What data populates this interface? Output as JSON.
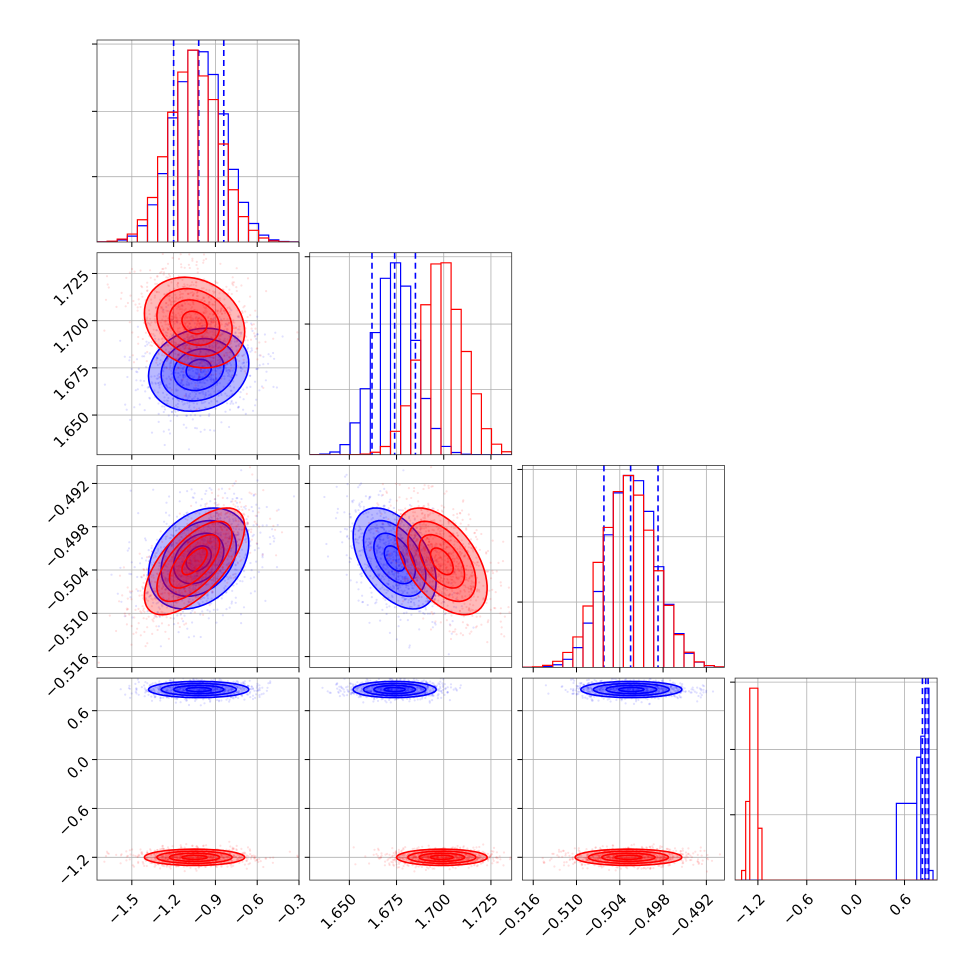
{
  "chart_data": {
    "type": "corner",
    "title": "",
    "grid": true,
    "parameters": [
      {
        "index": 0,
        "range": [
          -1.75,
          -0.3
        ],
        "ticks": [
          -1.5,
          -1.2,
          -0.9,
          -0.6,
          -0.3
        ],
        "tick_labels": [
          "−1.5",
          "−1.2",
          "−0.9",
          "−0.6",
          "−0.3"
        ]
      },
      {
        "index": 1,
        "range": [
          1.629,
          1.736
        ],
        "ticks": [
          1.65,
          1.675,
          1.7,
          1.725
        ],
        "tick_labels": [
          "1.650",
          "1.675",
          "1.700",
          "1.725"
        ]
      },
      {
        "index": 2,
        "range": [
          -0.5175,
          -0.4895
        ],
        "ticks": [
          -0.516,
          -0.51,
          -0.504,
          -0.498,
          -0.492
        ],
        "tick_labels": [
          "−0.516",
          "−0.510",
          "−0.504",
          "−0.498",
          "−0.492"
        ]
      },
      {
        "index": 3,
        "range": [
          -1.48,
          1.0
        ],
        "ticks": [
          -1.2,
          -0.6,
          0.0,
          0.6
        ],
        "tick_labels": [
          "−1.2",
          "−0.6",
          "0.0",
          "0.6"
        ]
      }
    ],
    "series": [
      {
        "color": "#0000ff",
        "means": [
          -1.02,
          1.674,
          -0.5024,
          0.86
        ],
        "sds": [
          0.18,
          0.011,
          0.0035,
          0.05
        ],
        "correlations": {
          "1-0": 0.15,
          "2-0": 0.3,
          "2-1": -0.45,
          "3-0": 0.0,
          "3-1": 0.0,
          "3-2": 0.0
        },
        "quantiles": [
          [
            -1.2,
            -1.02,
            -0.84
          ],
          [
            1.662,
            1.674,
            1.685
          ],
          [
            -0.5062,
            -0.5025,
            -0.4987
          ],
          [
            0.82,
            0.86,
            0.89
          ]
        ],
        "hist3_custom": [
          {
            "lo": 0.5,
            "hi": 0.75,
            "w": 0.4
          },
          {
            "lo": 0.75,
            "hi": 0.8,
            "w": 0.64
          },
          {
            "lo": 0.8,
            "hi": 0.85,
            "w": 0.75
          },
          {
            "lo": 0.85,
            "hi": 0.9,
            "w": 1.0
          },
          {
            "lo": 0.9,
            "hi": 0.95,
            "w": 0.05
          }
        ]
      },
      {
        "color": "#ff0000",
        "means": [
          -1.05,
          1.699,
          -0.5028,
          -1.2
        ],
        "sds": [
          0.18,
          0.012,
          0.0037,
          0.05
        ],
        "correlations": {
          "1-0": -0.2,
          "2-0": 0.65,
          "2-1": -0.5,
          "3-0": 0.0,
          "3-1": 0.0,
          "3-2": 0.0
        },
        "quantiles": [],
        "hist3_custom": [
          {
            "lo": -1.4,
            "hi": -1.35,
            "w": 0.05
          },
          {
            "lo": -1.35,
            "hi": -1.3,
            "w": 0.41
          },
          {
            "lo": -1.3,
            "hi": -1.2,
            "w": 1.0
          },
          {
            "lo": -1.2,
            "hi": -1.15,
            "w": 0.27
          }
        ]
      }
    ]
  }
}
